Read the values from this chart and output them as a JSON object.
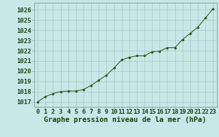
{
  "x": [
    0,
    1,
    2,
    3,
    4,
    5,
    6,
    7,
    8,
    9,
    10,
    11,
    12,
    13,
    14,
    15,
    16,
    17,
    18,
    19,
    20,
    21,
    22,
    23
  ],
  "y": [
    1017.0,
    1017.5,
    1017.8,
    1018.0,
    1018.05,
    1018.05,
    1018.2,
    1018.6,
    1019.1,
    1019.6,
    1020.3,
    1021.1,
    1021.35,
    1021.5,
    1021.5,
    1021.9,
    1021.95,
    1022.3,
    1022.3,
    1023.1,
    1023.7,
    1024.3,
    1025.2,
    1026.1
  ],
  "line_color": "#2d5a1b",
  "marker_color": "#2d5a1b",
  "bg_color": "#c8e8e8",
  "grid_color": "#b0c8c8",
  "xlabel": "Graphe pression niveau de la mer (hPa)",
  "xlabel_color": "#1a4010",
  "tick_color": "#1a4010",
  "ylabel_ticks": [
    1017,
    1018,
    1019,
    1020,
    1021,
    1022,
    1023,
    1024,
    1025,
    1026
  ],
  "xlim": [
    -0.5,
    23.5
  ],
  "ylim": [
    1016.5,
    1026.7
  ],
  "tick_fontsize": 6.5,
  "xlabel_fontsize": 7.5
}
